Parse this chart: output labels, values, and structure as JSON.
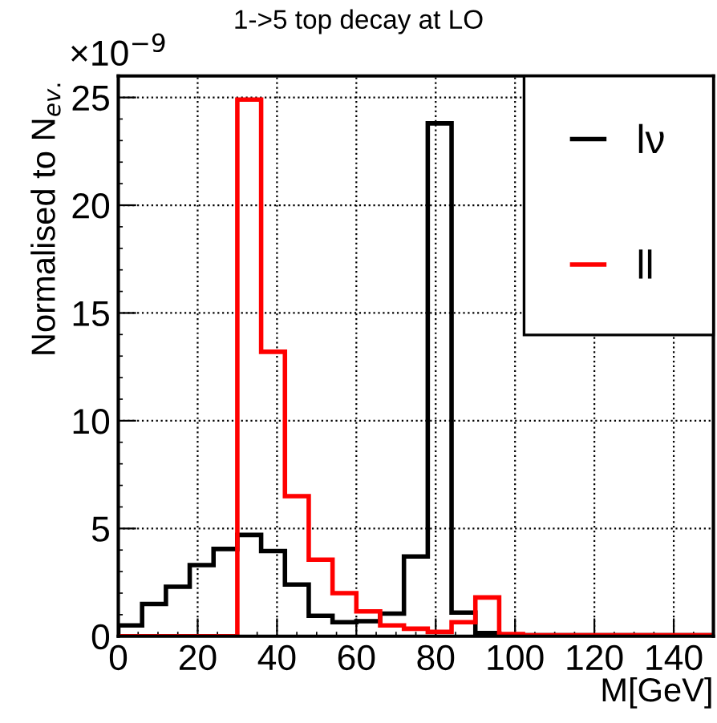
{
  "chart_data": {
    "type": "histogram",
    "title": "1->5 top decay at LO",
    "xlabel": "M[GeV]",
    "ylabel": "Normalised to N$_{ev.}$",
    "annotations": [
      "×10$^{−9}$"
    ],
    "bins": [
      0,
      6,
      12,
      18,
      24,
      30,
      36,
      42,
      48,
      54,
      60,
      66,
      72,
      78,
      84,
      90,
      96,
      102,
      108,
      114,
      120,
      126,
      132,
      138,
      144,
      150
    ],
    "series": [
      {
        "name": "lν",
        "color": "#000000",
        "values": [
          0.5,
          1.5,
          2.3,
          3.3,
          4.05,
          4.7,
          3.95,
          2.4,
          0.95,
          0.65,
          0.7,
          1.05,
          3.7,
          23.8,
          1.1,
          0.15,
          0.05,
          0.05,
          0.05,
          0.05,
          0.05,
          0.05,
          0.05,
          0.05,
          0.05
        ]
      },
      {
        "name": "ll",
        "color": "#ff0000",
        "values": [
          0,
          0,
          0,
          0,
          0,
          24.9,
          13.2,
          6.5,
          3.55,
          2.0,
          1.15,
          0.5,
          0.35,
          0.2,
          0.65,
          1.8,
          0.1,
          0.05,
          0.05,
          0.05,
          0.05,
          0.05,
          0.05,
          0.05,
          0.05
        ]
      }
    ],
    "xlim": [
      0,
      150
    ],
    "ylim": [
      0,
      26
    ],
    "xticks": [
      0,
      20,
      40,
      60,
      80,
      100,
      120,
      140
    ],
    "yticks": [
      0,
      5,
      10,
      15,
      20,
      25
    ],
    "grid": true,
    "legend": "top right"
  }
}
